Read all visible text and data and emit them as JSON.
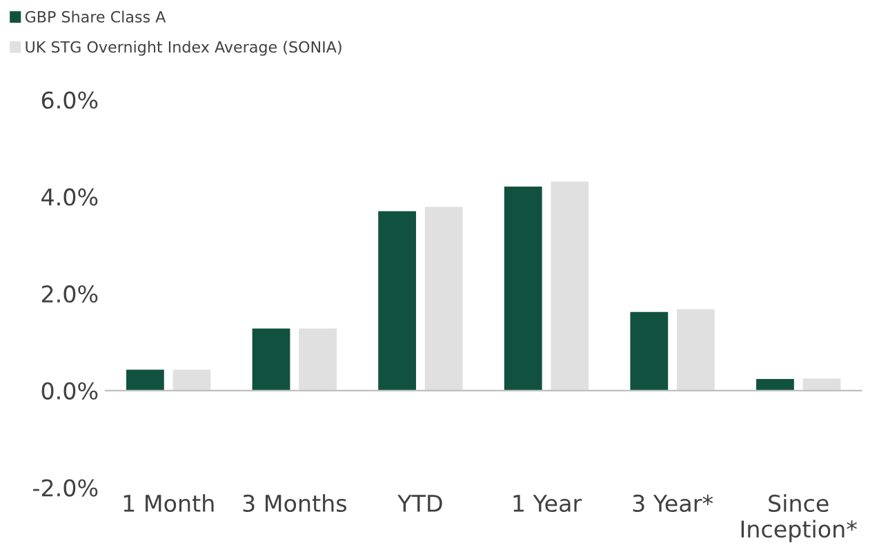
{
  "chart_data": {
    "type": "bar",
    "categories": [
      "1 Month",
      "3 Months",
      "YTD",
      "1 Year",
      "3 Year*",
      "Since\nInception*"
    ],
    "series": [
      {
        "name": "GBP Share Class A",
        "color": "#10523f",
        "values": [
          0.43,
          1.28,
          3.7,
          4.21,
          1.62,
          0.24
        ]
      },
      {
        "name": "UK STG Overnight Index Average (SONIA)",
        "color": "#e0e0e0",
        "values": [
          0.43,
          1.28,
          3.79,
          4.31,
          1.68,
          0.25
        ]
      }
    ],
    "ylim": [
      -2.0,
      6.0
    ],
    "yticks": [
      {
        "value": -2.0,
        "label": "-2.0%"
      },
      {
        "value": 0.0,
        "label": "0.0%"
      },
      {
        "value": 2.0,
        "label": "2.0%"
      },
      {
        "value": 4.0,
        "label": "4.0%"
      },
      {
        "value": 6.0,
        "label": "6.0%"
      }
    ],
    "legend": "top left"
  }
}
